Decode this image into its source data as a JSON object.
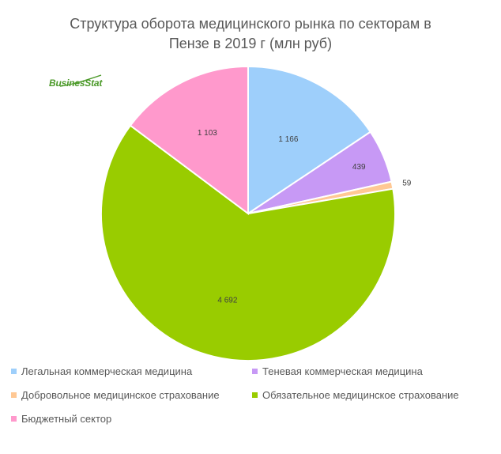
{
  "title_line1": "Структура оборота медицинского рынка по секторам в",
  "title_line2": "Пензе в 2019 г (млн руб)",
  "logo_text": "BusinesStat",
  "chart_data": {
    "type": "pie",
    "title": "Структура оборота медицинского рынка по секторам в Пензе в 2019 г (млн руб)",
    "categories": [
      "Легальная коммерческая медицина",
      "Теневая коммерческая медицина",
      "Добровольное медицинское страхование",
      "Обязательное медицинское страхование",
      "Бюджетный сектор"
    ],
    "values": [
      1166,
      439,
      59,
      4692,
      1103
    ],
    "data_labels": [
      "1 166",
      "439",
      "59",
      "4 692",
      "1 103"
    ],
    "colors": [
      "#9ecffb",
      "#c799f5",
      "#ffc894",
      "#99cc00",
      "#ff99cc"
    ],
    "start_angle_deg": 0,
    "direction": "clockwise",
    "legend_position": "bottom"
  }
}
